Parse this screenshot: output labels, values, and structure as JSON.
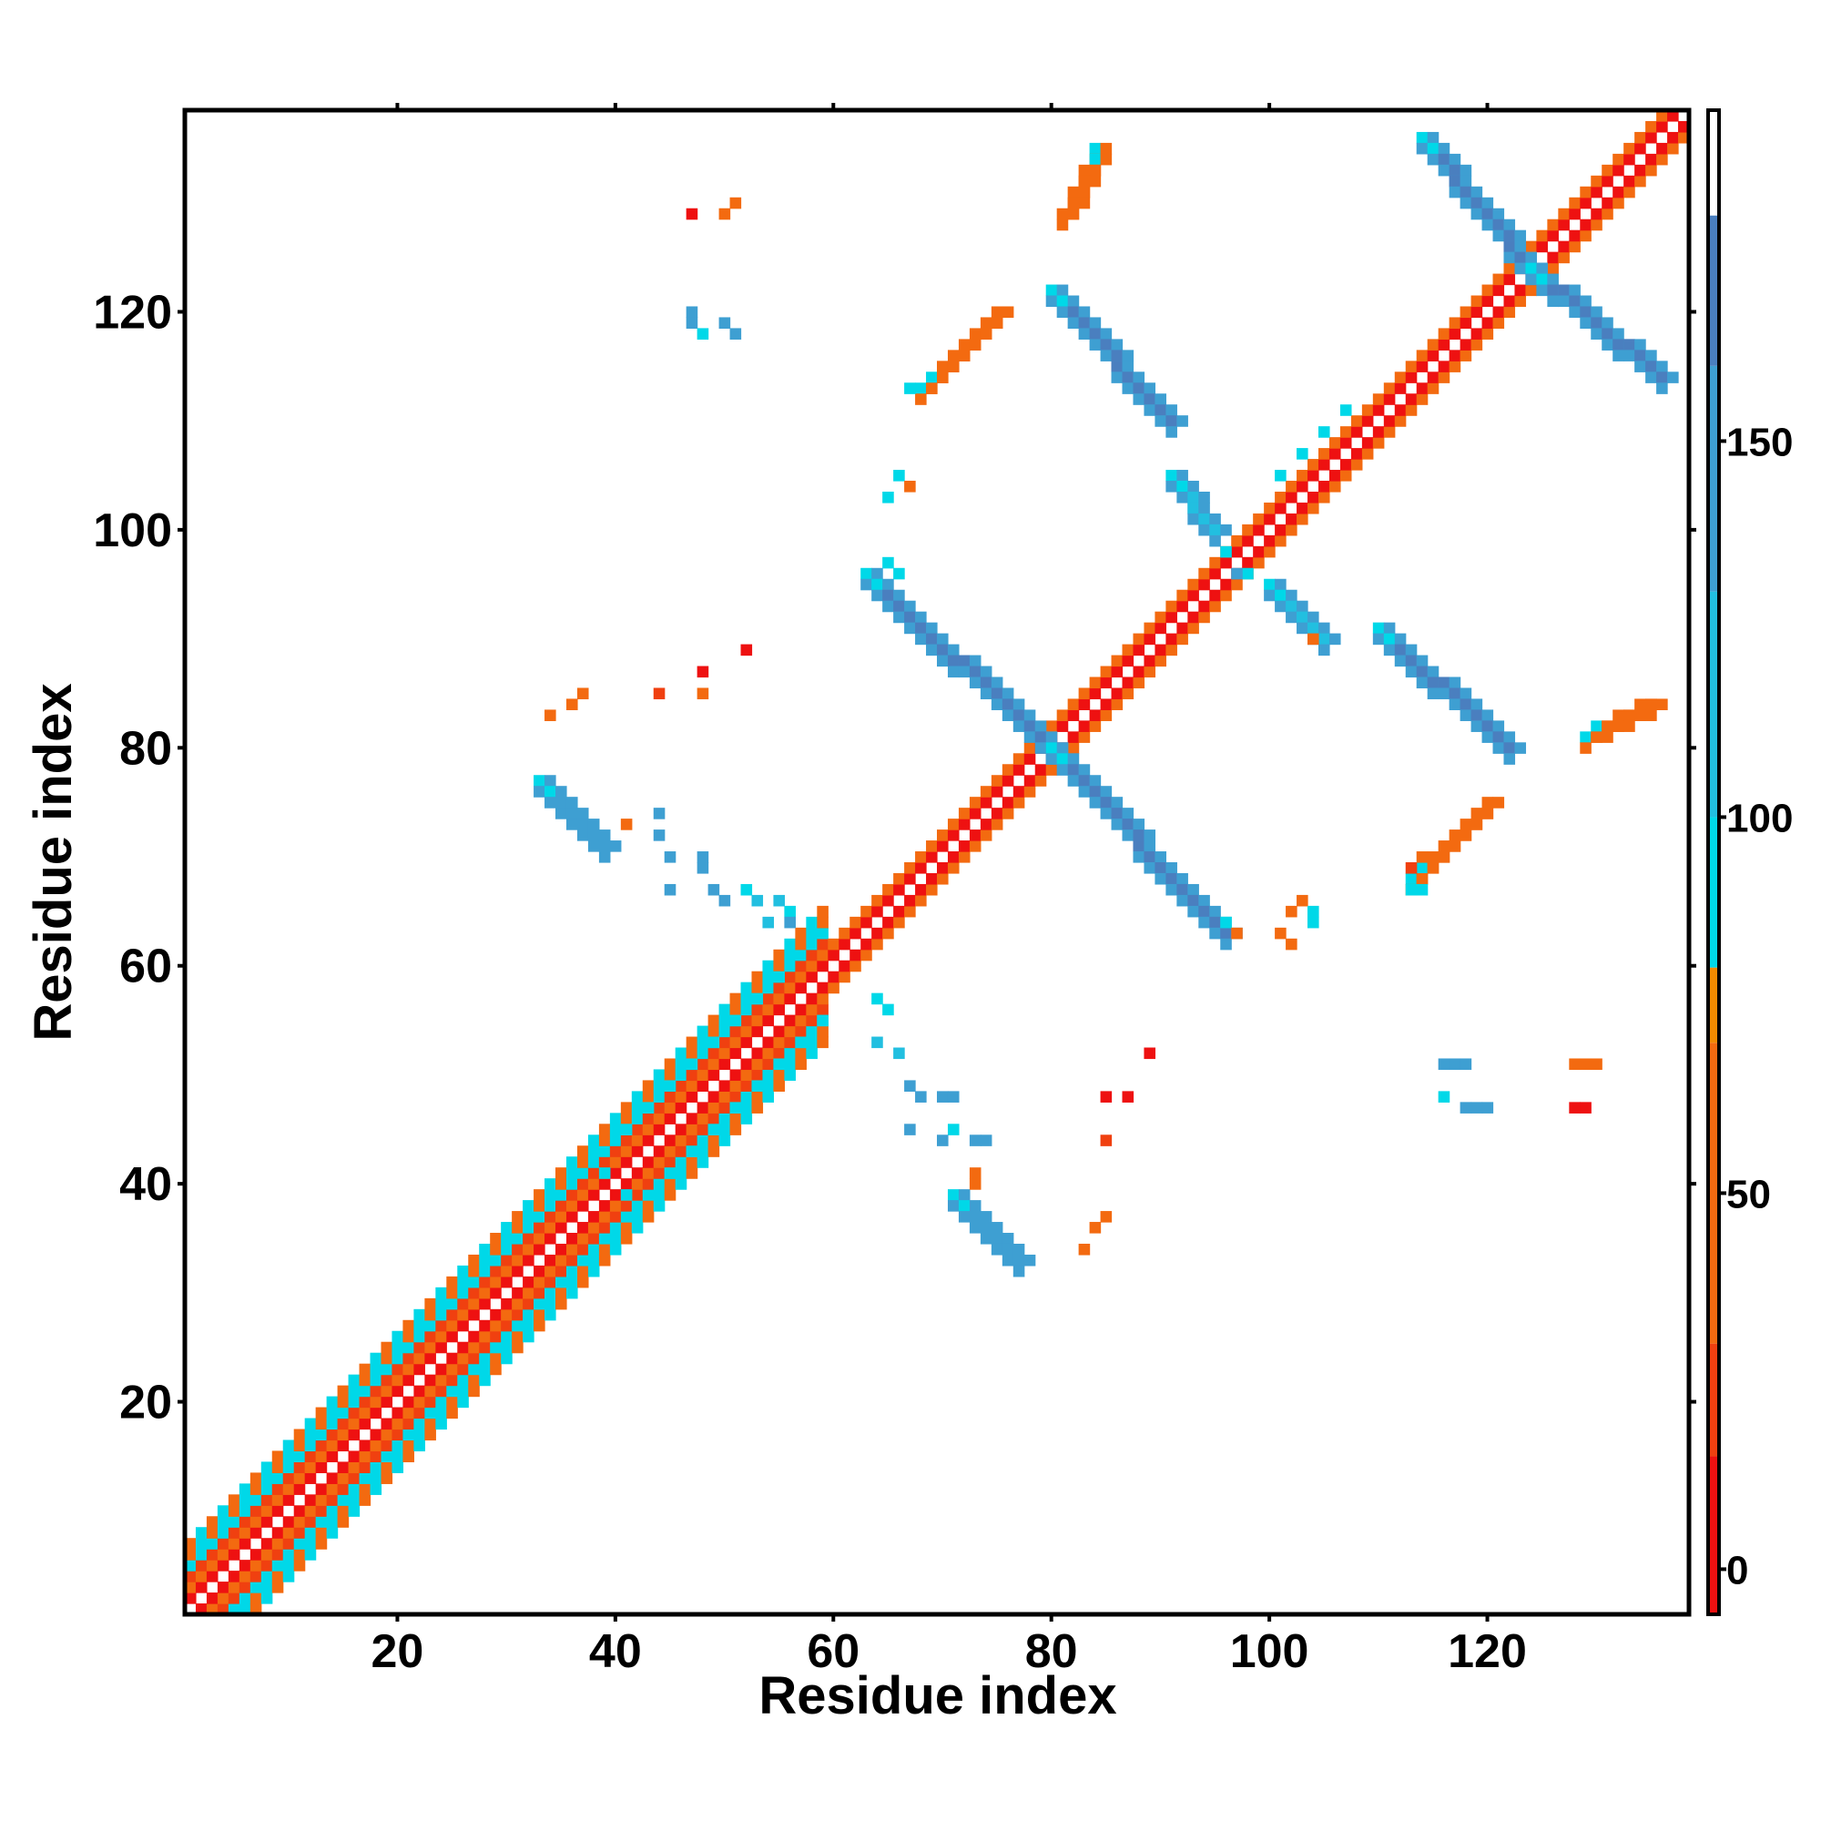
{
  "chart_data": {
    "type": "heatmap",
    "title": "",
    "xlabel": "Residue index",
    "ylabel": "Residue index",
    "xlim": [
      1,
      138
    ],
    "ylim": [
      1,
      138
    ],
    "x_ticks": [
      20,
      40,
      60,
      80,
      100,
      120
    ],
    "y_ticks": [
      20,
      40,
      60,
      80,
      100,
      120
    ],
    "grid": false,
    "legend": "none",
    "colorbar": {
      "placement": "right",
      "ticks": [
        0,
        50,
        100,
        150
      ],
      "range": [
        -6,
        194
      ],
      "bands": [
        {
          "from": -6,
          "to": 15,
          "color": "#ee1111"
        },
        {
          "from": 15,
          "to": 30,
          "color": "#f04010"
        },
        {
          "from": 30,
          "to": 70,
          "color": "#f36a10"
        },
        {
          "from": 70,
          "to": 80,
          "color": "#f08a00"
        },
        {
          "from": 80,
          "to": 100,
          "color": "#00d8e8"
        },
        {
          "from": 100,
          "to": 130,
          "color": "#22bfe0"
        },
        {
          "from": 130,
          "to": 160,
          "color": "#3e9fd2"
        },
        {
          "from": 160,
          "to": 180,
          "color": "#4a7fbf"
        },
        {
          "from": 180,
          "to": 194,
          "color": "#ffffff"
        }
      ]
    },
    "diagonal_band": {
      "from": 1,
      "to": 138,
      "half_width_low": 6,
      "half_width_high": 2,
      "narrow_after": 60
    },
    "helix_cells": [
      {
        "x": 41,
        "y": 45,
        "value": 90
      },
      {
        "x": 43,
        "y": 47,
        "value": 90
      },
      {
        "x": 45,
        "y": 49,
        "value": 90
      },
      {
        "x": 47,
        "y": 51,
        "value": 90
      },
      {
        "x": 49,
        "y": 53,
        "value": 90
      },
      {
        "x": 51,
        "y": 55,
        "value": 90
      },
      {
        "x": 53,
        "y": 57,
        "value": 90
      },
      {
        "x": 55,
        "y": 59,
        "value": 90
      },
      {
        "x": 45,
        "y": 41,
        "value": 90
      },
      {
        "x": 47,
        "y": 43,
        "value": 90
      },
      {
        "x": 49,
        "y": 45,
        "value": 90
      },
      {
        "x": 51,
        "y": 47,
        "value": 90
      },
      {
        "x": 53,
        "y": 49,
        "value": 90
      },
      {
        "x": 55,
        "y": 51,
        "value": 90
      },
      {
        "x": 57,
        "y": 53,
        "value": 90
      },
      {
        "x": 59,
        "y": 55,
        "value": 90
      },
      {
        "x": 39,
        "y": 41,
        "value": 95
      },
      {
        "x": 41,
        "y": 39,
        "value": 95
      },
      {
        "x": 101,
        "y": 105,
        "value": 90
      },
      {
        "x": 103,
        "y": 107,
        "value": 90
      },
      {
        "x": 105,
        "y": 109,
        "value": 90
      },
      {
        "x": 107,
        "y": 111,
        "value": 90
      },
      {
        "x": 96,
        "y": 98,
        "value": 90
      },
      {
        "x": 98,
        "y": 96,
        "value": 90
      }
    ],
    "segments": [
      {
        "x0": 63,
        "y0": 96,
        "x1": 80,
        "y1": 80,
        "value": 165
      },
      {
        "x0": 80,
        "y0": 80,
        "x1": 96,
        "y1": 63,
        "value": 165
      },
      {
        "x0": 80,
        "y0": 122,
        "x1": 91,
        "y1": 110,
        "value": 165
      },
      {
        "x0": 110,
        "y0": 91,
        "x1": 122,
        "y1": 80,
        "value": 165
      },
      {
        "x0": 114,
        "y0": 136,
        "x1": 124,
        "y1": 124,
        "value": 165
      },
      {
        "x0": 124,
        "y0": 124,
        "x1": 136,
        "y1": 114,
        "value": 165
      },
      {
        "x0": 33,
        "y0": 77,
        "x1": 39,
        "y1": 71,
        "value": 150
      },
      {
        "x0": 71,
        "y0": 39,
        "x1": 77,
        "y1": 33,
        "value": 150
      },
      {
        "x0": 91,
        "y0": 105,
        "x1": 95,
        "y1": 100,
        "value": 120
      },
      {
        "x0": 100,
        "y0": 95,
        "x1": 105,
        "y1": 90,
        "value": 120
      },
      {
        "x0": 84,
        "y0": 135,
        "x1": 81,
        "y1": 129,
        "value": 40
      },
      {
        "x0": 129,
        "y0": 81,
        "x1": 135,
        "y1": 84,
        "value": 40
      },
      {
        "x0": 68,
        "y0": 113,
        "x1": 75,
        "y1": 120,
        "value": 40
      },
      {
        "x0": 113,
        "y0": 68,
        "x1": 120,
        "y1": 75,
        "value": 40
      }
    ],
    "cells": [
      {
        "x": 47,
        "y": 129,
        "value": 5
      },
      {
        "x": 51,
        "y": 130,
        "value": 60
      },
      {
        "x": 50,
        "y": 129,
        "value": 60
      },
      {
        "x": 47,
        "y": 120,
        "value": 150
      },
      {
        "x": 47,
        "y": 119,
        "value": 150
      },
      {
        "x": 48,
        "y": 118,
        "value": 90
      },
      {
        "x": 50,
        "y": 119,
        "value": 130
      },
      {
        "x": 51,
        "y": 118,
        "value": 140
      },
      {
        "x": 67,
        "y": 113,
        "value": 95
      },
      {
        "x": 66,
        "y": 105,
        "value": 90
      },
      {
        "x": 67,
        "y": 104,
        "value": 60
      },
      {
        "x": 65,
        "y": 103,
        "value": 90
      },
      {
        "x": 65,
        "y": 97,
        "value": 95
      },
      {
        "x": 66,
        "y": 96,
        "value": 95
      },
      {
        "x": 52,
        "y": 89,
        "value": 5
      },
      {
        "x": 48,
        "y": 87,
        "value": 5
      },
      {
        "x": 48,
        "y": 85,
        "value": 40
      },
      {
        "x": 44,
        "y": 85,
        "value": 20
      },
      {
        "x": 37,
        "y": 85,
        "value": 60
      },
      {
        "x": 36,
        "y": 84,
        "value": 60
      },
      {
        "x": 34,
        "y": 83,
        "value": 60
      },
      {
        "x": 41,
        "y": 73,
        "value": 60
      },
      {
        "x": 44,
        "y": 74,
        "value": 150
      },
      {
        "x": 44,
        "y": 72,
        "value": 150
      },
      {
        "x": 45,
        "y": 70,
        "value": 150
      },
      {
        "x": 48,
        "y": 70,
        "value": 150
      },
      {
        "x": 48,
        "y": 69,
        "value": 150
      },
      {
        "x": 45,
        "y": 67,
        "value": 150
      },
      {
        "x": 49,
        "y": 67,
        "value": 150
      },
      {
        "x": 50,
        "y": 66,
        "value": 150
      },
      {
        "x": 52,
        "y": 67,
        "value": 90
      },
      {
        "x": 53,
        "y": 66,
        "value": 120
      },
      {
        "x": 55,
        "y": 66,
        "value": 120
      },
      {
        "x": 54,
        "y": 64,
        "value": 120
      },
      {
        "x": 56,
        "y": 65,
        "value": 90
      },
      {
        "x": 56,
        "y": 64,
        "value": 150
      },
      {
        "x": 64,
        "y": 57,
        "value": 90
      },
      {
        "x": 65,
        "y": 56,
        "value": 90
      },
      {
        "x": 64,
        "y": 53,
        "value": 120
      },
      {
        "x": 66,
        "y": 52,
        "value": 120
      },
      {
        "x": 67,
        "y": 49,
        "value": 150
      },
      {
        "x": 68,
        "y": 48,
        "value": 150
      },
      {
        "x": 70,
        "y": 48,
        "value": 150
      },
      {
        "x": 71,
        "y": 48,
        "value": 150
      },
      {
        "x": 67,
        "y": 45,
        "value": 150
      },
      {
        "x": 71,
        "y": 45,
        "value": 90
      },
      {
        "x": 70,
        "y": 44,
        "value": 150
      },
      {
        "x": 73,
        "y": 44,
        "value": 150
      },
      {
        "x": 74,
        "y": 44,
        "value": 150
      },
      {
        "x": 73,
        "y": 41,
        "value": 60
      },
      {
        "x": 73,
        "y": 40,
        "value": 60
      },
      {
        "x": 89,
        "y": 52,
        "value": 5
      },
      {
        "x": 85,
        "y": 48,
        "value": 5
      },
      {
        "x": 87,
        "y": 48,
        "value": 5
      },
      {
        "x": 85,
        "y": 44,
        "value": 20
      },
      {
        "x": 85,
        "y": 37,
        "value": 60
      },
      {
        "x": 84,
        "y": 36,
        "value": 60
      },
      {
        "x": 83,
        "y": 34,
        "value": 60
      },
      {
        "x": 96,
        "y": 64,
        "value": 90
      },
      {
        "x": 97,
        "y": 63,
        "value": 60
      },
      {
        "x": 102,
        "y": 65,
        "value": 60
      },
      {
        "x": 103,
        "y": 66,
        "value": 60
      },
      {
        "x": 104,
        "y": 65,
        "value": 90
      },
      {
        "x": 104,
        "y": 64,
        "value": 90
      },
      {
        "x": 101,
        "y": 63,
        "value": 60
      },
      {
        "x": 102,
        "y": 62,
        "value": 60
      },
      {
        "x": 116,
        "y": 51,
        "value": 150
      },
      {
        "x": 117,
        "y": 51,
        "value": 150
      },
      {
        "x": 118,
        "y": 51,
        "value": 150
      },
      {
        "x": 116,
        "y": 48,
        "value": 90
      },
      {
        "x": 118,
        "y": 47,
        "value": 150
      },
      {
        "x": 119,
        "y": 47,
        "value": 150
      },
      {
        "x": 120,
        "y": 47,
        "value": 150
      },
      {
        "x": 128,
        "y": 51,
        "value": 40
      },
      {
        "x": 129,
        "y": 51,
        "value": 40
      },
      {
        "x": 130,
        "y": 51,
        "value": 40
      },
      {
        "x": 128,
        "y": 47,
        "value": 5
      },
      {
        "x": 129,
        "y": 47,
        "value": 5
      },
      {
        "x": 113,
        "y": 67,
        "value": 95
      },
      {
        "x": 114,
        "y": 67,
        "value": 95
      },
      {
        "x": 113,
        "y": 69,
        "value": 20
      },
      {
        "x": 114,
        "y": 70,
        "value": 40
      },
      {
        "x": 104,
        "y": 90,
        "value": 60
      },
      {
        "x": 97,
        "y": 96,
        "value": 150
      }
    ]
  }
}
